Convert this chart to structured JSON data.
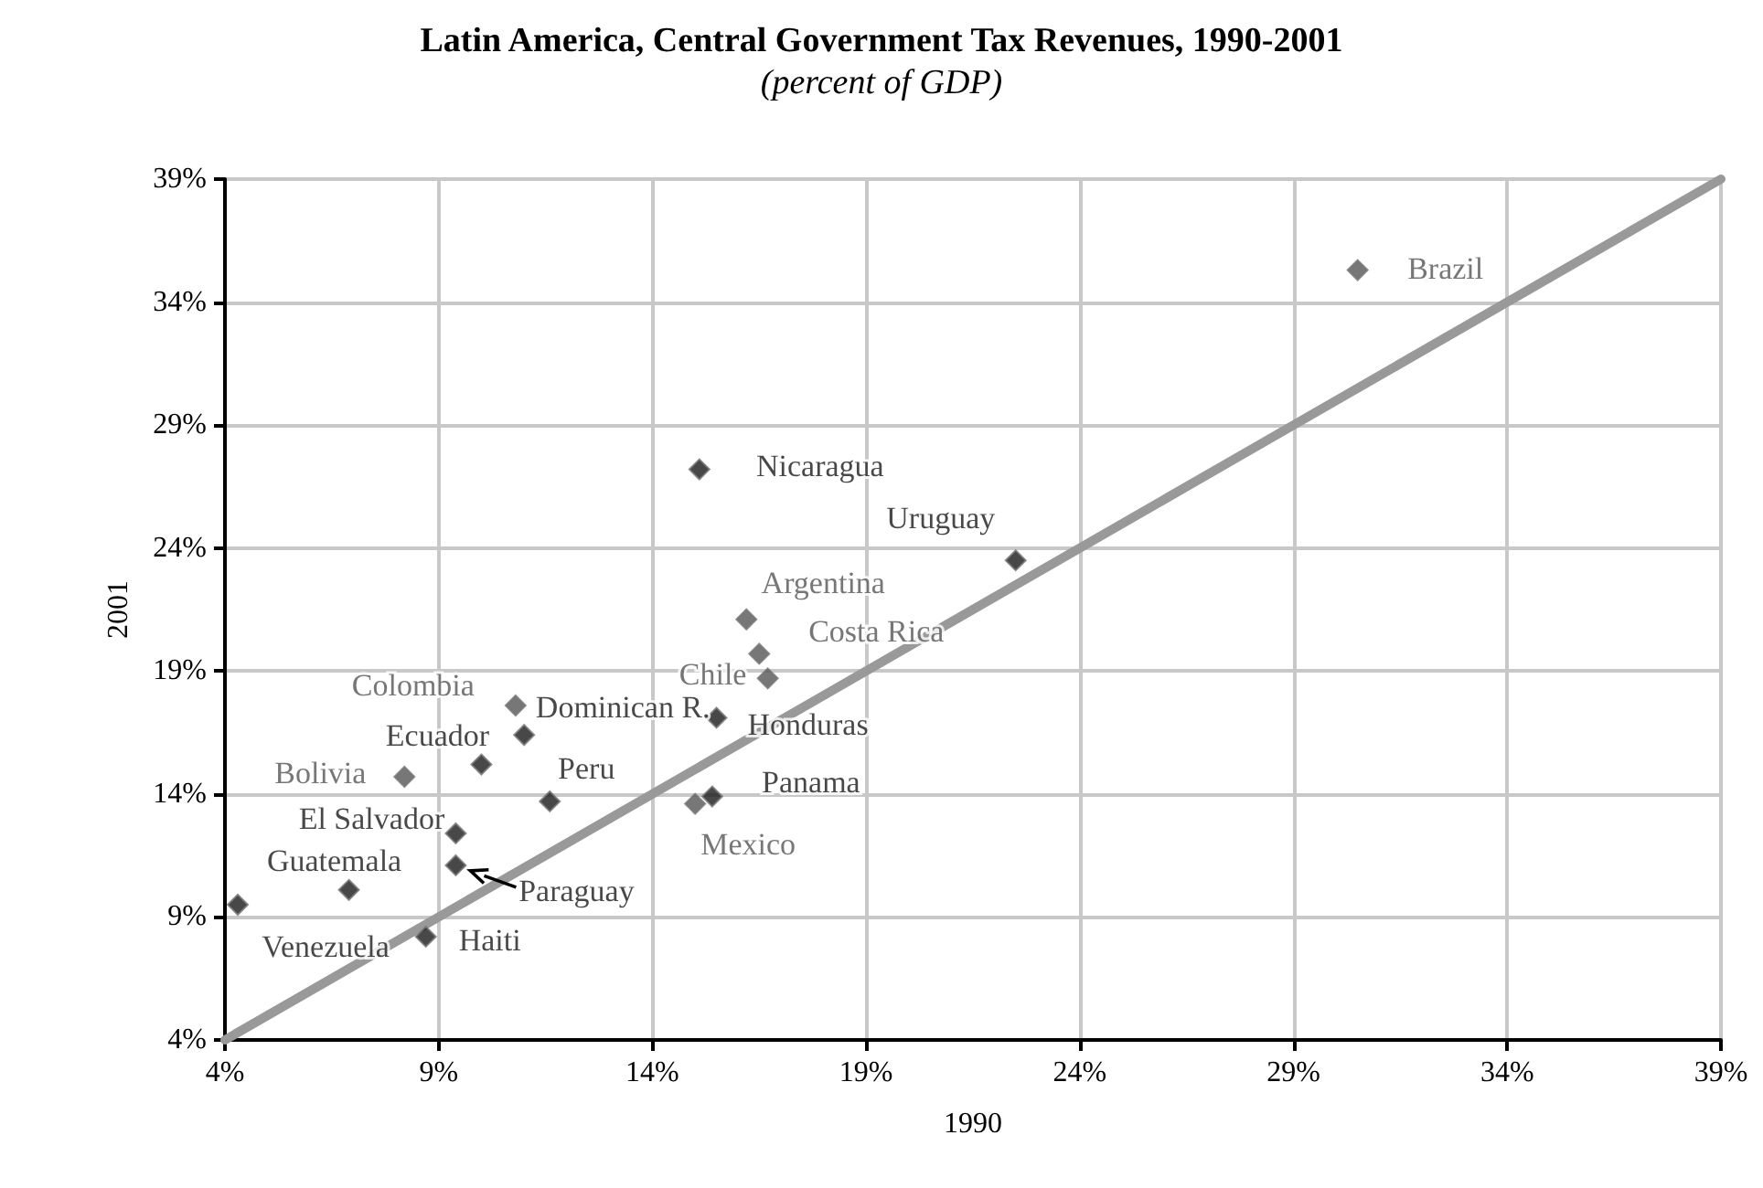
{
  "chart_data": {
    "type": "scatter",
    "title": "Latin America, Central Government Tax Revenues, 1990-2001",
    "subtitle": "(percent of GDP)",
    "xlabel": "1990",
    "ylabel": "2001",
    "xlim": [
      4,
      39
    ],
    "ylim": [
      4,
      39
    ],
    "xticks": [
      {
        "value": 4,
        "label": "4%"
      },
      {
        "value": 9,
        "label": "9%"
      },
      {
        "value": 14,
        "label": "14%"
      },
      {
        "value": 19,
        "label": "19%"
      },
      {
        "value": 24,
        "label": "24%"
      },
      {
        "value": 29,
        "label": "29%"
      },
      {
        "value": 34,
        "label": "34%"
      },
      {
        "value": 39,
        "label": "39%"
      }
    ],
    "yticks": [
      {
        "value": 4,
        "label": "4%"
      },
      {
        "value": 9,
        "label": "9%"
      },
      {
        "value": 14,
        "label": "14%"
      },
      {
        "value": 19,
        "label": "19%"
      },
      {
        "value": 24,
        "label": "24%"
      },
      {
        "value": 29,
        "label": "29%"
      },
      {
        "value": 34,
        "label": "34%"
      },
      {
        "value": 39,
        "label": "39%"
      }
    ],
    "grid": true,
    "legend": false,
    "marker": "diamond",
    "series": [
      {
        "name": "Venezuela",
        "color": "#1a1a1a",
        "x": [
          4.3
        ],
        "values": [
          9.5
        ]
      },
      {
        "name": "Guatemala",
        "color": "#1a1a1a",
        "x": [
          6.9
        ],
        "values": [
          10.1
        ]
      },
      {
        "name": "Haiti",
        "color": "#1a1a1a",
        "x": [
          8.7
        ],
        "values": [
          8.2
        ]
      },
      {
        "name": "El Salvador",
        "color": "#1a1a1a",
        "x": [
          9.4
        ],
        "values": [
          12.4
        ]
      },
      {
        "name": "Paraguay",
        "color": "#1a1a1a",
        "x": [
          9.4
        ],
        "values": [
          11.1
        ]
      },
      {
        "name": "Bolivia",
        "color": "#555555",
        "x": [
          8.2
        ],
        "values": [
          14.7
        ]
      },
      {
        "name": "Ecuador",
        "color": "#1a1a1a",
        "x": [
          10.0
        ],
        "values": [
          15.2
        ]
      },
      {
        "name": "Colombia",
        "color": "#555555",
        "x": [
          10.8
        ],
        "values": [
          17.6
        ]
      },
      {
        "name": "Dominican R.",
        "color": "#1a1a1a",
        "x": [
          11.0
        ],
        "values": [
          16.4
        ]
      },
      {
        "name": "Peru",
        "color": "#1a1a1a",
        "x": [
          11.6
        ],
        "values": [
          13.7
        ]
      },
      {
        "name": "Mexico",
        "color": "#555555",
        "x": [
          15.0
        ],
        "values": [
          13.6
        ]
      },
      {
        "name": "Panama",
        "color": "#1a1a1a",
        "x": [
          15.4
        ],
        "values": [
          13.9
        ]
      },
      {
        "name": "Honduras",
        "color": "#1a1a1a",
        "x": [
          15.5
        ],
        "values": [
          17.1
        ]
      },
      {
        "name": "Chile",
        "color": "#555555",
        "x": [
          16.7
        ],
        "values": [
          18.7
        ]
      },
      {
        "name": "Costa Rica",
        "color": "#555555",
        "x": [
          16.5
        ],
        "values": [
          19.7
        ]
      },
      {
        "name": "Argentina",
        "color": "#555555",
        "x": [
          16.2
        ],
        "values": [
          21.1
        ]
      },
      {
        "name": "Nicaragua",
        "color": "#1a1a1a",
        "x": [
          15.1
        ],
        "values": [
          27.2
        ]
      },
      {
        "name": "Uruguay",
        "color": "#1a1a1a",
        "x": [
          22.5
        ],
        "values": [
          23.5
        ]
      },
      {
        "name": "Brazil",
        "color": "#555555",
        "x": [
          30.5
        ],
        "values": [
          35.3
        ]
      },
      {
        "type": "line",
        "color": "#999999",
        "marker": "none",
        "x": [
          4,
          39
        ],
        "values": [
          4,
          39
        ]
      }
    ]
  }
}
